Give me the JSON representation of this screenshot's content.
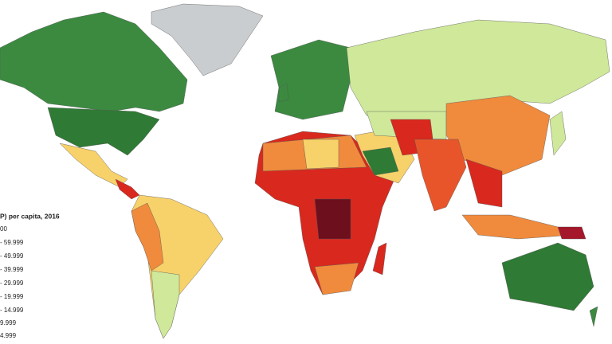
{
  "legend": {
    "title": "P) per capita, 2016",
    "items": [
      "00",
      "- 59.999",
      "- 49.999",
      "- 39.999",
      "- 29.999",
      "- 19.999",
      "- 14.999",
      "9.999",
      "4.999"
    ]
  }
}
